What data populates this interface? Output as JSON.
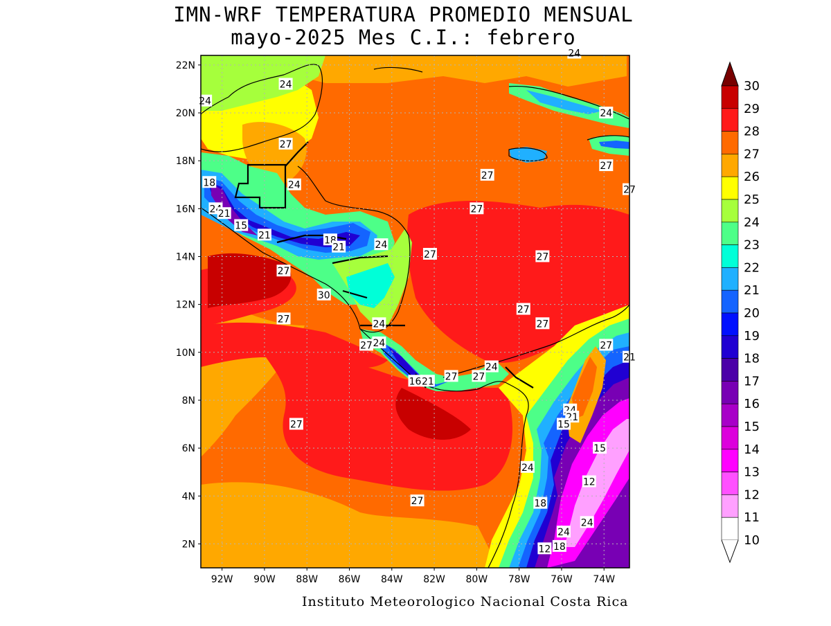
{
  "title": {
    "line1": "IMN-WRF  TEMPERATURA PROMEDIO MENSUAL",
    "line2": "mayo-2025 Mes C.I.: febrero"
  },
  "credit": "Instituto Meteorologico Nacional Costa Rica",
  "map": {
    "lat_ticks": [
      "22N",
      "20N",
      "18N",
      "16N",
      "14N",
      "12N",
      "10N",
      "8N",
      "6N",
      "4N",
      "2N"
    ],
    "lon_ticks": [
      "92W",
      "90W",
      "88W",
      "86W",
      "84W",
      "82W",
      "80W",
      "78W",
      "76W",
      "74W"
    ],
    "lat_range": [
      1,
      22.4
    ],
    "lon_range": [
      -93,
      -72.8
    ],
    "grid": true
  },
  "colorbar": {
    "labels": [
      "30",
      "29",
      "28",
      "27",
      "26",
      "25",
      "24",
      "23",
      "22",
      "21",
      "20",
      "19",
      "18",
      "17",
      "16",
      "15",
      "14",
      "13",
      "12",
      "11",
      "10"
    ],
    "colors": [
      "#a00000",
      "#c80000",
      "#ff1a1a",
      "#ff6a00",
      "#ffa800",
      "#ffff00",
      "#a6ff3c",
      "#4dff88",
      "#00ffd8",
      "#20b0ff",
      "#1464ff",
      "#0010ff",
      "#2000d2",
      "#4b00a8",
      "#7800b4",
      "#a800c8",
      "#dc00dc",
      "#ff00ff",
      "#ff50ff",
      "#ffa0ff",
      "#ffffff"
    ],
    "top_arrow_color": "#780000"
  },
  "contour_labels": [
    {
      "text": "24",
      "lon": -75.4,
      "lat": 22.5
    },
    {
      "text": "24",
      "lon": -89.0,
      "lat": 21.2
    },
    {
      "text": "24",
      "lon": -92.8,
      "lat": 20.5
    },
    {
      "text": "24",
      "lon": -73.9,
      "lat": 20.0
    },
    {
      "text": "27",
      "lon": -89.0,
      "lat": 18.7
    },
    {
      "text": "27",
      "lon": -73.9,
      "lat": 17.8
    },
    {
      "text": "27",
      "lon": -79.5,
      "lat": 17.4
    },
    {
      "text": "18",
      "lon": -92.6,
      "lat": 17.1
    },
    {
      "text": "24",
      "lon": -88.6,
      "lat": 17.0
    },
    {
      "text": "27",
      "lon": -72.8,
      "lat": 16.8
    },
    {
      "text": "24",
      "lon": -92.3,
      "lat": 16.0
    },
    {
      "text": "27",
      "lon": -80.0,
      "lat": 16.0
    },
    {
      "text": "21",
      "lon": -91.9,
      "lat": 15.8
    },
    {
      "text": "15",
      "lon": -91.1,
      "lat": 15.3
    },
    {
      "text": "21",
      "lon": -90.0,
      "lat": 14.9
    },
    {
      "text": "18",
      "lon": -86.9,
      "lat": 14.7
    },
    {
      "text": "24",
      "lon": -84.5,
      "lat": 14.5
    },
    {
      "text": "21",
      "lon": -86.5,
      "lat": 14.4
    },
    {
      "text": "27",
      "lon": -82.2,
      "lat": 14.1
    },
    {
      "text": "27",
      "lon": -76.9,
      "lat": 14.0
    },
    {
      "text": "27",
      "lon": -89.1,
      "lat": 13.4
    },
    {
      "text": "30",
      "lon": -87.2,
      "lat": 12.4
    },
    {
      "text": "27",
      "lon": -77.8,
      "lat": 11.8
    },
    {
      "text": "27",
      "lon": -89.1,
      "lat": 11.4
    },
    {
      "text": "24",
      "lon": -84.6,
      "lat": 11.2
    },
    {
      "text": "27",
      "lon": -76.9,
      "lat": 11.2
    },
    {
      "text": "27",
      "lon": -85.2,
      "lat": 10.3
    },
    {
      "text": "24",
      "lon": -84.6,
      "lat": 10.4
    },
    {
      "text": "27",
      "lon": -73.9,
      "lat": 10.3
    },
    {
      "text": "21",
      "lon": -72.8,
      "lat": 9.8
    },
    {
      "text": "24",
      "lon": -79.3,
      "lat": 9.4
    },
    {
      "text": "27",
      "lon": -81.2,
      "lat": 9.0
    },
    {
      "text": "27",
      "lon": -79.9,
      "lat": 9.0
    },
    {
      "text": "16",
      "lon": -82.9,
      "lat": 8.8
    },
    {
      "text": "21",
      "lon": -82.3,
      "lat": 8.8
    },
    {
      "text": "24",
      "lon": -75.6,
      "lat": 7.6
    },
    {
      "text": "21",
      "lon": -75.5,
      "lat": 7.3
    },
    {
      "text": "15",
      "lon": -75.9,
      "lat": 7.0
    },
    {
      "text": "27",
      "lon": -88.5,
      "lat": 7.0
    },
    {
      "text": "15",
      "lon": -74.2,
      "lat": 6.0
    },
    {
      "text": "24",
      "lon": -77.6,
      "lat": 5.2
    },
    {
      "text": "12",
      "lon": -74.7,
      "lat": 4.6
    },
    {
      "text": "27",
      "lon": -82.8,
      "lat": 3.8
    },
    {
      "text": "18",
      "lon": -77.0,
      "lat": 3.7
    },
    {
      "text": "24",
      "lon": -74.8,
      "lat": 2.9
    },
    {
      "text": "24",
      "lon": -75.9,
      "lat": 2.5
    },
    {
      "text": "18",
      "lon": -76.1,
      "lat": 1.9
    },
    {
      "text": "12",
      "lon": -76.8,
      "lat": 1.8
    }
  ]
}
